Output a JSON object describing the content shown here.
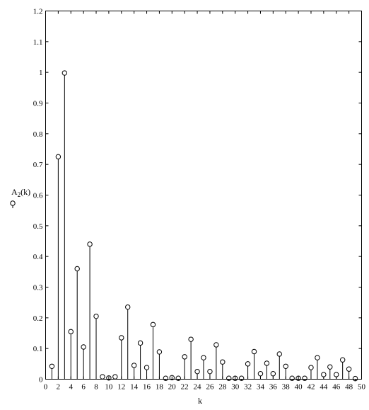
{
  "chart_data": {
    "type": "stem",
    "title": "",
    "xlabel": "k",
    "ylabel_main": "A",
    "ylabel_sub": "2",
    "ylabel_suffix": "(k)",
    "xlim": [
      0,
      50
    ],
    "ylim": [
      0,
      1.2
    ],
    "x_ticks": [
      0,
      2,
      4,
      6,
      8,
      10,
      12,
      14,
      16,
      18,
      20,
      22,
      24,
      26,
      28,
      30,
      32,
      34,
      36,
      38,
      40,
      42,
      44,
      46,
      48,
      50
    ],
    "y_ticks": [
      0,
      0.1,
      0.2,
      0.3,
      0.4,
      0.5,
      0.6,
      0.7,
      0.8,
      0.9,
      1,
      1.1,
      1.2
    ],
    "y_tick_labels": [
      "0",
      "0.1",
      "0.2",
      "0.3",
      "0.4",
      "0.5",
      "0.6",
      "0.7",
      "0.8",
      "0.9",
      "1",
      "1.1",
      "1.2"
    ],
    "grid": false,
    "marker": "open-circle",
    "x": [
      1,
      2,
      3,
      4,
      5,
      6,
      7,
      8,
      9,
      10,
      11,
      12,
      13,
      14,
      15,
      16,
      17,
      18,
      19,
      20,
      21,
      22,
      23,
      24,
      25,
      26,
      27,
      28,
      29,
      30,
      31,
      32,
      33,
      34,
      35,
      36,
      37,
      38,
      39,
      40,
      41,
      42,
      43,
      44,
      45,
      46,
      47,
      48,
      49
    ],
    "values": [
      0.042,
      0.725,
      0.998,
      0.155,
      0.36,
      0.105,
      0.44,
      0.205,
      0.008,
      0.004,
      0.008,
      0.135,
      0.235,
      0.045,
      0.118,
      0.038,
      0.178,
      0.089,
      0.003,
      0.005,
      0.003,
      0.073,
      0.13,
      0.025,
      0.07,
      0.025,
      0.112,
      0.056,
      0.003,
      0.003,
      0.003,
      0.05,
      0.09,
      0.018,
      0.052,
      0.018,
      0.082,
      0.042,
      0.003,
      0.003,
      0.003,
      0.038,
      0.07,
      0.015,
      0.04,
      0.015,
      0.063,
      0.033,
      0.002
    ]
  }
}
